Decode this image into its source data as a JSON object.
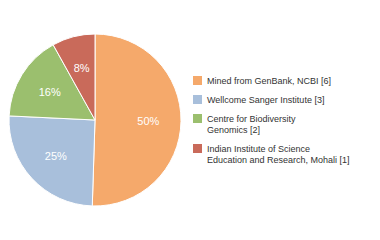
{
  "chart_data": {
    "type": "pie",
    "categories": [
      "Mined from GenBank, NCBI [6]",
      "Wellcome Sanger Institute [3]",
      "Centre for Biodiversity\nGenomics [2]",
      "Indian Institute of Science\nEducation and Research, Mohali [1]"
    ],
    "values": [
      50,
      25,
      16,
      8
    ],
    "value_labels": [
      "50%",
      "25%",
      "16%",
      "8%"
    ],
    "colors": [
      "#F5A96B",
      "#A8BFDB",
      "#9BBF6E",
      "#C96A5A"
    ],
    "data_labels": true,
    "legend": "right"
  }
}
